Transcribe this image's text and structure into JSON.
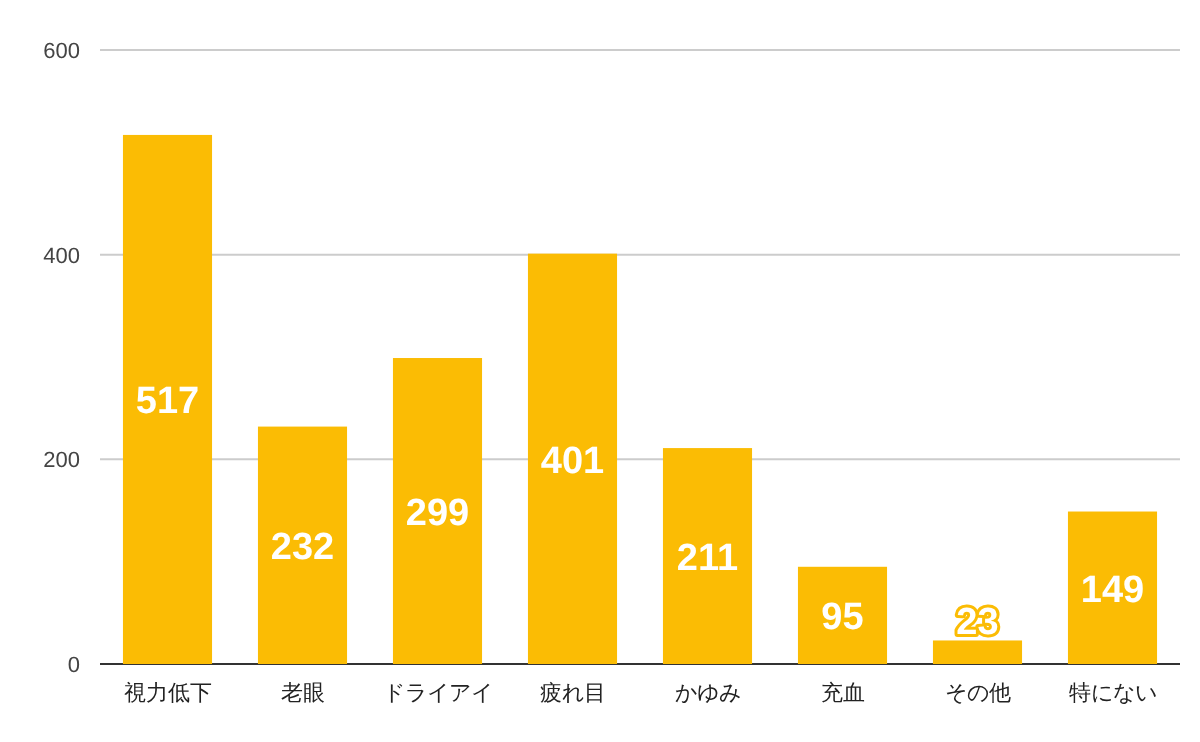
{
  "chart_data": {
    "type": "bar",
    "categories": [
      "視力低下",
      "老眼",
      "ドライアイ",
      "疲れ目",
      "かゆみ",
      "充血",
      "その他",
      "特にない"
    ],
    "values": [
      517,
      232,
      299,
      401,
      211,
      95,
      23,
      149
    ],
    "color": "#fbbc04",
    "ylim": [
      0,
      600
    ],
    "yticks": [
      0,
      200,
      400,
      600
    ],
    "grid": "y",
    "data_labels": true
  }
}
